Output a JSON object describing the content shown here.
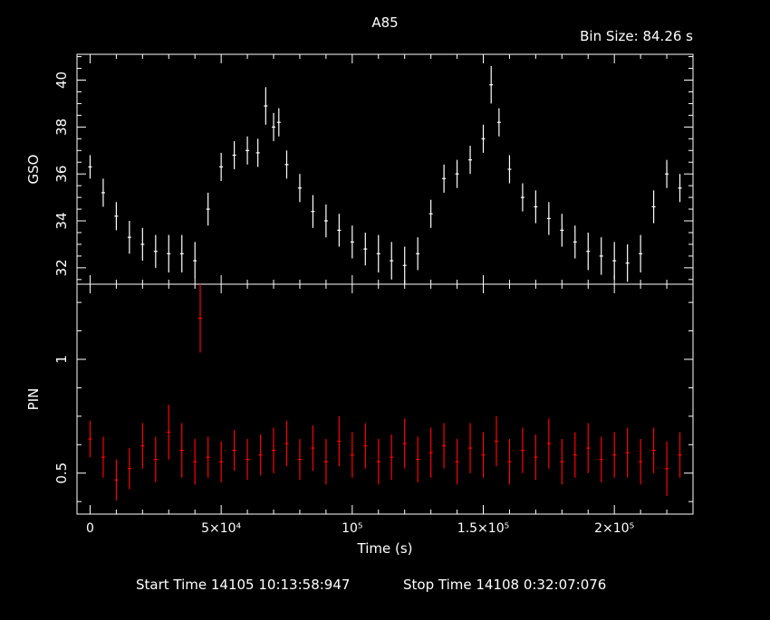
{
  "header": {
    "title": "A85",
    "bin_size": "Bin Size: 84.26 s"
  },
  "footer": {
    "start_time": "Start Time 14105 10:13:58:947",
    "stop_time": "Stop Time 14108  0:32:07:076"
  },
  "colors": {
    "background": "#000000",
    "axes": "#ffffff",
    "gso_series": "#ffffff",
    "pin_series": "#ff0000"
  },
  "chart_data": [
    {
      "type": "scatter",
      "title": "A85",
      "ylabel": "GSO",
      "xlabel": "",
      "xlim": [
        -5000,
        230000
      ],
      "ylim": [
        31.3,
        41.1
      ],
      "yticks": [
        32,
        34,
        36,
        38,
        40
      ],
      "error_bars": true,
      "series": [
        {
          "x": [
            0,
            5000,
            10000,
            15000,
            20000,
            25000,
            30000,
            35000,
            40000,
            45000,
            50000,
            55000,
            60000,
            64000,
            67000,
            70000,
            72000,
            75000,
            80000,
            85000,
            90000,
            95000,
            100000,
            105000,
            110000,
            115000,
            120000,
            125000,
            130000,
            135000,
            140000,
            145000,
            150000,
            153000,
            156000,
            160000,
            165000,
            170000,
            175000,
            180000,
            185000,
            190000,
            195000,
            200000,
            205000,
            210000,
            215000,
            220000,
            225000
          ],
          "y": [
            36.3,
            35.2,
            34.2,
            33.3,
            33.0,
            32.7,
            32.6,
            32.6,
            32.3,
            34.5,
            36.3,
            36.8,
            37.0,
            36.9,
            38.9,
            38.0,
            38.2,
            36.4,
            35.4,
            34.4,
            34.0,
            33.6,
            33.1,
            32.8,
            32.6,
            32.3,
            32.1,
            32.6,
            34.3,
            35.8,
            36.0,
            36.6,
            37.5,
            39.8,
            38.2,
            36.2,
            35.0,
            34.6,
            34.1,
            33.6,
            33.1,
            32.7,
            32.5,
            32.3,
            32.2,
            32.6,
            34.6,
            36.0,
            35.4
          ],
          "yerr": [
            0.5,
            0.6,
            0.6,
            0.7,
            0.7,
            0.7,
            0.8,
            0.8,
            0.8,
            0.7,
            0.6,
            0.6,
            0.6,
            0.6,
            0.8,
            0.6,
            0.6,
            0.6,
            0.6,
            0.7,
            0.7,
            0.7,
            0.7,
            0.7,
            0.8,
            0.8,
            0.8,
            0.7,
            0.6,
            0.6,
            0.6,
            0.6,
            0.6,
            0.8,
            0.6,
            0.6,
            0.6,
            0.7,
            0.7,
            0.7,
            0.7,
            0.8,
            0.8,
            0.8,
            0.8,
            0.8,
            0.7,
            0.6,
            0.6
          ]
        }
      ]
    },
    {
      "type": "scatter",
      "ylabel": "PIN",
      "xlabel": "Time (s)",
      "xlim": [
        -5000,
        230000
      ],
      "ylim": [
        0.32,
        1.33
      ],
      "yticks": [
        0.5,
        1
      ],
      "ytick_labels": [
        "0.5",
        "1"
      ],
      "xticks": [
        0,
        50000,
        100000,
        150000,
        200000
      ],
      "xtick_labels": [
        "0",
        "5×10⁴",
        "10⁵",
        "1.5×10⁵",
        "2×10⁵"
      ],
      "error_bars": true,
      "series": [
        {
          "x": [
            0,
            5000,
            10000,
            15000,
            20000,
            25000,
            30000,
            35000,
            40000,
            42000,
            45000,
            50000,
            55000,
            60000,
            65000,
            70000,
            75000,
            80000,
            85000,
            90000,
            95000,
            100000,
            105000,
            110000,
            115000,
            120000,
            125000,
            130000,
            135000,
            140000,
            145000,
            150000,
            155000,
            160000,
            165000,
            170000,
            175000,
            180000,
            185000,
            190000,
            195000,
            200000,
            205000,
            210000,
            215000,
            220000,
            225000
          ],
          "y": [
            0.65,
            0.57,
            0.47,
            0.52,
            0.62,
            0.56,
            0.68,
            0.6,
            0.55,
            1.18,
            0.57,
            0.55,
            0.6,
            0.56,
            0.58,
            0.6,
            0.63,
            0.56,
            0.61,
            0.55,
            0.64,
            0.58,
            0.62,
            0.55,
            0.57,
            0.63,
            0.56,
            0.59,
            0.62,
            0.55,
            0.61,
            0.58,
            0.64,
            0.55,
            0.6,
            0.57,
            0.63,
            0.55,
            0.58,
            0.61,
            0.56,
            0.58,
            0.59,
            0.55,
            0.6,
            0.52,
            0.58
          ],
          "yerr": [
            0.08,
            0.09,
            0.09,
            0.09,
            0.1,
            0.1,
            0.12,
            0.12,
            0.1,
            0.15,
            0.09,
            0.09,
            0.09,
            0.09,
            0.09,
            0.1,
            0.1,
            0.09,
            0.1,
            0.1,
            0.11,
            0.1,
            0.1,
            0.1,
            0.1,
            0.11,
            0.1,
            0.11,
            0.1,
            0.1,
            0.11,
            0.1,
            0.11,
            0.1,
            0.1,
            0.1,
            0.11,
            0.1,
            0.1,
            0.11,
            0.1,
            0.1,
            0.11,
            0.1,
            0.1,
            0.12,
            0.1
          ]
        }
      ]
    }
  ]
}
